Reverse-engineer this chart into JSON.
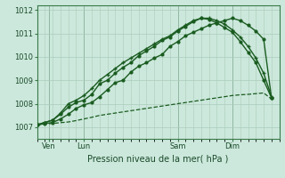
{
  "xlabel": "Pression niveau de la mer( hPa )",
  "background_color": "#cce8dc",
  "grid_color": "#aaccbb",
  "line_color": "#1a5c20",
  "ylim": [
    1006.5,
    1012.2
  ],
  "xlim": [
    0,
    31
  ],
  "yticks": [
    1007,
    1008,
    1009,
    1010,
    1011,
    1012
  ],
  "xtick_positions": [
    1.5,
    6,
    18,
    25
  ],
  "xtick_labels": [
    "Ven",
    "Lun",
    "Sam",
    "Dim"
  ],
  "vline_positions": [
    1.5,
    6,
    18,
    25
  ],
  "series1_x": [
    0,
    1,
    2,
    3,
    4,
    5,
    6,
    7,
    8,
    9,
    10,
    11,
    12,
    13,
    14,
    15,
    16,
    17,
    18,
    19,
    20,
    21,
    22,
    23,
    24,
    25,
    26,
    27,
    28,
    29,
    30
  ],
  "series1_y": [
    1007.1,
    1007.13,
    1007.16,
    1007.19,
    1007.22,
    1007.28,
    1007.35,
    1007.42,
    1007.5,
    1007.55,
    1007.6,
    1007.65,
    1007.7,
    1007.75,
    1007.8,
    1007.85,
    1007.9,
    1007.95,
    1008.0,
    1008.05,
    1008.1,
    1008.15,
    1008.2,
    1008.25,
    1008.3,
    1008.35,
    1008.38,
    1008.4,
    1008.43,
    1008.46,
    1008.2
  ],
  "series2_x": [
    0,
    1,
    2,
    3,
    4,
    5,
    6,
    7,
    8,
    9,
    10,
    11,
    12,
    13,
    14,
    15,
    16,
    17,
    18,
    19,
    20,
    21,
    22,
    23,
    24,
    25,
    26,
    27,
    28,
    29,
    30
  ],
  "series2_y": [
    1007.1,
    1007.15,
    1007.2,
    1007.35,
    1007.55,
    1007.8,
    1007.95,
    1008.05,
    1008.3,
    1008.6,
    1008.9,
    1009.0,
    1009.35,
    1009.6,
    1009.75,
    1009.95,
    1010.1,
    1010.45,
    1010.65,
    1010.9,
    1011.05,
    1011.2,
    1011.35,
    1011.45,
    1011.55,
    1011.65,
    1011.55,
    1011.35,
    1011.1,
    1010.75,
    1008.25
  ],
  "series3_x": [
    0,
    1,
    2,
    3,
    4,
    5,
    6,
    7,
    8,
    9,
    10,
    11,
    12,
    13,
    14,
    15,
    16,
    17,
    18,
    19,
    20,
    21,
    22,
    23,
    24,
    25,
    26,
    27,
    28,
    29,
    30
  ],
  "series3_y": [
    1007.1,
    1007.2,
    1007.3,
    1007.55,
    1007.85,
    1008.05,
    1008.15,
    1008.4,
    1008.85,
    1009.0,
    1009.3,
    1009.55,
    1009.75,
    1010.05,
    1010.25,
    1010.45,
    1010.7,
    1010.85,
    1011.1,
    1011.3,
    1011.5,
    1011.65,
    1011.6,
    1011.45,
    1011.25,
    1011.05,
    1010.65,
    1010.2,
    1009.75,
    1009.0,
    1008.25
  ],
  "series4_x": [
    0,
    1,
    2,
    3,
    4,
    5,
    6,
    7,
    8,
    9,
    10,
    11,
    12,
    13,
    14,
    15,
    16,
    17,
    18,
    19,
    20,
    21,
    22,
    23,
    24,
    25,
    26,
    27,
    28,
    29,
    30
  ],
  "series4_y": [
    1007.1,
    1007.2,
    1007.3,
    1007.6,
    1008.0,
    1008.15,
    1008.35,
    1008.65,
    1009.0,
    1009.25,
    1009.5,
    1009.75,
    1009.95,
    1010.15,
    1010.35,
    1010.55,
    1010.75,
    1010.9,
    1011.15,
    1011.35,
    1011.55,
    1011.65,
    1011.65,
    1011.55,
    1011.4,
    1011.15,
    1010.85,
    1010.45,
    1009.95,
    1009.3,
    1008.3
  ]
}
